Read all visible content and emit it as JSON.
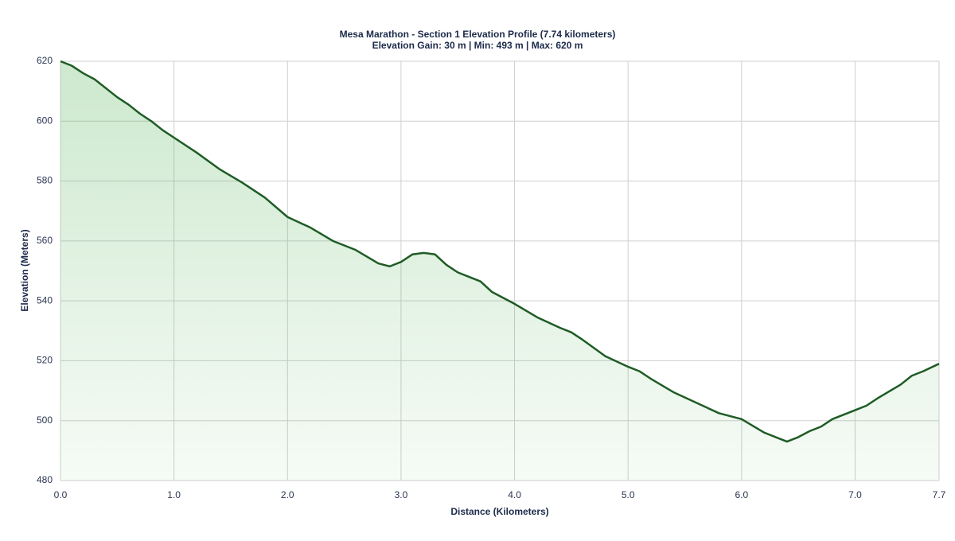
{
  "chart_data": {
    "type": "area-line",
    "title": "Mesa Marathon - Section 1 Elevation Profile (7.74 kilometers)",
    "subtitle": "Elevation Gain: 30 m | Min: 493 m | Max: 620 m",
    "x_label": "Distance (Kilometers)",
    "y_label": "Elevation (Meters)",
    "x": [
      0,
      0.1,
      0.2,
      0.3,
      0.4,
      0.5,
      0.6,
      0.7,
      0.8,
      0.9,
      1.0,
      1.2,
      1.4,
      1.6,
      1.8,
      2.0,
      2.2,
      2.4,
      2.6,
      2.8,
      2.9,
      3.0,
      3.1,
      3.2,
      3.3,
      3.4,
      3.5,
      3.6,
      3.7,
      3.8,
      4.0,
      4.2,
      4.4,
      4.5,
      4.6,
      4.8,
      5.0,
      5.1,
      5.2,
      5.4,
      5.6,
      5.8,
      6.0,
      6.2,
      6.3,
      6.4,
      6.5,
      6.6,
      6.7,
      6.8,
      7.0,
      7.1,
      7.2,
      7.4,
      7.5,
      7.6,
      7.74
    ],
    "series": [
      {
        "name": "Elevation",
        "color": "#1f5c25",
        "fill": "#4caf50",
        "values": [
          620,
          618.5,
          616,
          614,
          611,
          608,
          605.5,
          602.5,
          600,
          597,
          594.5,
          589.5,
          584,
          579.5,
          574.5,
          568,
          564.5,
          560,
          557,
          552.5,
          551.5,
          553,
          555.5,
          556,
          555.5,
          552,
          549.5,
          548,
          546.5,
          543,
          539,
          534.5,
          531,
          529.5,
          527,
          521.5,
          518,
          516.5,
          514,
          509.5,
          506,
          502.5,
          500.5,
          496,
          494.5,
          493,
          494.5,
          496.5,
          498,
          500.5,
          503.5,
          505,
          507.5,
          512,
          515,
          516.5,
          519
        ]
      }
    ],
    "xlim": [
      0,
      7.74
    ],
    "xticks": [
      {
        "value": 0,
        "label": "0.0"
      },
      {
        "value": 1,
        "label": "1.0"
      },
      {
        "value": 2,
        "label": "2.0"
      },
      {
        "value": 3,
        "label": "3.0"
      },
      {
        "value": 4,
        "label": "4.0"
      },
      {
        "value": 5,
        "label": "5.0"
      },
      {
        "value": 6,
        "label": "6.0"
      },
      {
        "value": 7,
        "label": "7.0"
      },
      {
        "value": 7.74,
        "label": "7.7"
      }
    ],
    "ylim": [
      480,
      620
    ],
    "yticks": [
      480,
      500,
      520,
      540,
      560,
      580,
      600,
      620
    ],
    "grid": true
  }
}
